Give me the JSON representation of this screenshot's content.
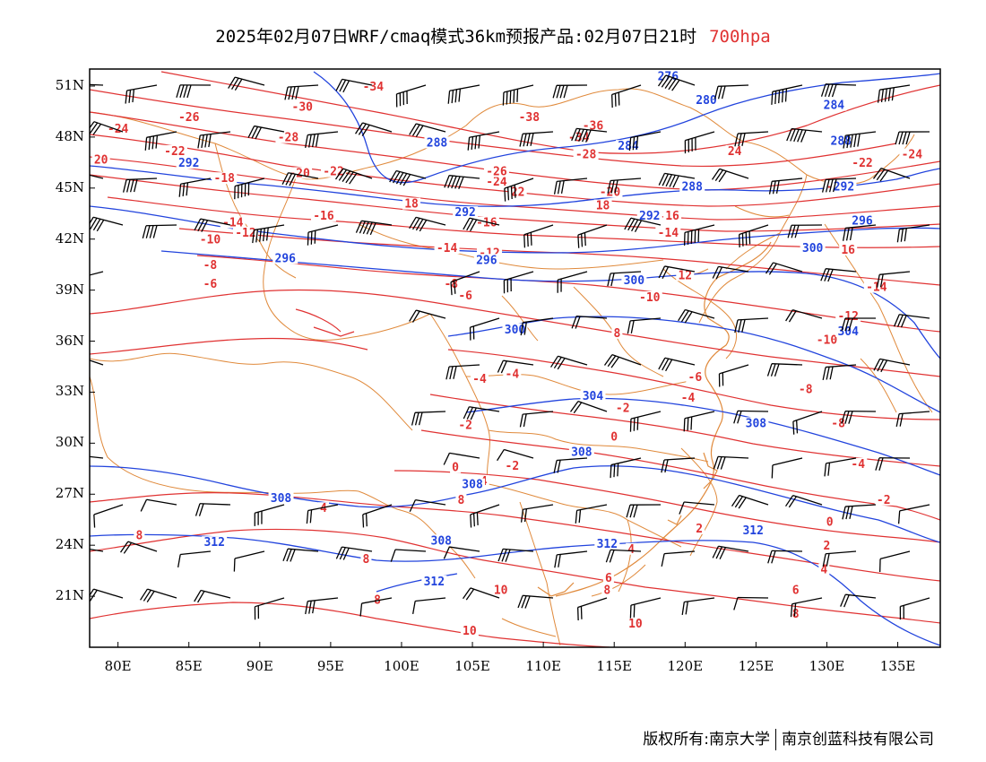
{
  "title": {
    "main": "2025年02月07日WRF/cmaq模式36km预报产品:02月07日21时",
    "level": "700hpa"
  },
  "footer": {
    "copyright": "版权所有:南京大学",
    "company": "南京创蓝科技有限公司"
  },
  "colors": {
    "temperature_contour": "#e03232",
    "height_contour": "#2244dd",
    "boundary": "#e08a3c",
    "wind_barb": "#000000"
  },
  "map_data": {
    "lon_range": [
      78,
      138
    ],
    "lat_range": [
      18,
      52
    ],
    "y_ticks": [
      "51N",
      "48N",
      "45N",
      "42N",
      "39N",
      "36N",
      "33N",
      "30N",
      "27N",
      "24N",
      "21N"
    ],
    "y_tick_values": [
      51,
      48,
      45,
      42,
      39,
      36,
      33,
      30,
      27,
      24,
      21
    ],
    "x_ticks": [
      "80E",
      "85E",
      "90E",
      "95E",
      "100E",
      "105E",
      "110E",
      "115E",
      "120E",
      "125E",
      "130E",
      "135E"
    ],
    "x_tick_values": [
      80,
      85,
      90,
      95,
      100,
      105,
      110,
      115,
      120,
      125,
      130,
      135
    ],
    "temperature_labels": [
      {
        "text": "-34",
        "lon": 98,
        "lat": 50.8
      },
      {
        "text": "-30",
        "lon": 93,
        "lat": 49.6
      },
      {
        "text": "-26",
        "lon": 85,
        "lat": 49.0
      },
      {
        "text": "-24",
        "lon": 80,
        "lat": 48.3
      },
      {
        "text": "-28",
        "lon": 92,
        "lat": 47.8
      },
      {
        "text": "-22",
        "lon": 84,
        "lat": 47.0
      },
      {
        "text": "-38",
        "lon": 109,
        "lat": 49.0
      },
      {
        "text": "-36",
        "lon": 113.5,
        "lat": 48.5
      },
      {
        "text": "-34",
        "lon": 112.5,
        "lat": 47.8
      },
      {
        "text": "-28",
        "lon": 113,
        "lat": 46.8
      },
      {
        "text": "24",
        "lon": 123.5,
        "lat": 47.0
      },
      {
        "text": "-22",
        "lon": 132.5,
        "lat": 46.3
      },
      {
        "text": "-24",
        "lon": 136,
        "lat": 46.8
      },
      {
        "text": "-20",
        "lon": 130.7,
        "lat": 44.9
      },
      {
        "text": "20",
        "lon": 78.8,
        "lat": 46.5
      },
      {
        "text": "-18",
        "lon": 87.5,
        "lat": 45.4
      },
      {
        "text": "-20",
        "lon": 92.8,
        "lat": 45.7
      },
      {
        "text": "-22",
        "lon": 95.2,
        "lat": 45.8
      },
      {
        "text": "-24",
        "lon": 106.7,
        "lat": 45.2
      },
      {
        "text": "-26",
        "lon": 106.7,
        "lat": 45.8
      },
      {
        "text": "22",
        "lon": 108.2,
        "lat": 44.6
      },
      {
        "text": "-20",
        "lon": 114.7,
        "lat": 44.6
      },
      {
        "text": "18",
        "lon": 100.7,
        "lat": 43.9
      },
      {
        "text": "18",
        "lon": 114.2,
        "lat": 43.8
      },
      {
        "text": "-16",
        "lon": 94.5,
        "lat": 43.2
      },
      {
        "text": "-16",
        "lon": 106,
        "lat": 42.8
      },
      {
        "text": "16",
        "lon": 119.1,
        "lat": 43.2
      },
      {
        "text": "-14",
        "lon": 88.1,
        "lat": 42.8
      },
      {
        "text": "-12",
        "lon": 89,
        "lat": 42.2
      },
      {
        "text": "-10",
        "lon": 86.5,
        "lat": 41.8
      },
      {
        "text": "-14",
        "lon": 118.8,
        "lat": 42.2
      },
      {
        "text": "-14",
        "lon": 103.2,
        "lat": 41.3
      },
      {
        "text": "-12",
        "lon": 106.2,
        "lat": 41.0
      },
      {
        "text": "16",
        "lon": 131.5,
        "lat": 41.2
      },
      {
        "text": "-8",
        "lon": 86.5,
        "lat": 40.3
      },
      {
        "text": "-6",
        "lon": 86.5,
        "lat": 39.2
      },
      {
        "text": "-8",
        "lon": 103.5,
        "lat": 39.2
      },
      {
        "text": "-6",
        "lon": 104.5,
        "lat": 38.5
      },
      {
        "text": "12",
        "lon": 120,
        "lat": 39.7
      },
      {
        "text": "-10",
        "lon": 117.5,
        "lat": 38.4
      },
      {
        "text": "-14",
        "lon": 133.5,
        "lat": 39.0
      },
      {
        "text": "-12",
        "lon": 131.5,
        "lat": 37.3
      },
      {
        "text": "-10",
        "lon": 130,
        "lat": 35.9
      },
      {
        "text": "8",
        "lon": 115.2,
        "lat": 36.3
      },
      {
        "text": "-6",
        "lon": 120.7,
        "lat": 33.7
      },
      {
        "text": "-4",
        "lon": 105.5,
        "lat": 33.6
      },
      {
        "text": "-4",
        "lon": 107.8,
        "lat": 33.9
      },
      {
        "text": "-4",
        "lon": 120.2,
        "lat": 32.5
      },
      {
        "text": "-8",
        "lon": 128.5,
        "lat": 33.0
      },
      {
        "text": "-2",
        "lon": 115.6,
        "lat": 31.9
      },
      {
        "text": "-2",
        "lon": 104.5,
        "lat": 30.9
      },
      {
        "text": "-8",
        "lon": 130.8,
        "lat": 31.0
      },
      {
        "text": "0",
        "lon": 115,
        "lat": 30.2
      },
      {
        "text": "-4",
        "lon": 132.2,
        "lat": 28.6
      },
      {
        "text": "-2",
        "lon": 107.8,
        "lat": 28.5
      },
      {
        "text": "0",
        "lon": 103.8,
        "lat": 28.4
      },
      {
        "text": "4",
        "lon": 105.8,
        "lat": 27.6
      },
      {
        "text": "8",
        "lon": 104.2,
        "lat": 26.5
      },
      {
        "text": "-2",
        "lon": 134,
        "lat": 26.5
      },
      {
        "text": "4",
        "lon": 94.5,
        "lat": 26.0
      },
      {
        "text": "0",
        "lon": 130.2,
        "lat": 25.2
      },
      {
        "text": "8",
        "lon": 81.5,
        "lat": 24.4
      },
      {
        "text": "2",
        "lon": 121,
        "lat": 24.8
      },
      {
        "text": "2",
        "lon": 130,
        "lat": 23.8
      },
      {
        "text": "4",
        "lon": 116.2,
        "lat": 23.6
      },
      {
        "text": "8",
        "lon": 97.5,
        "lat": 23.0
      },
      {
        "text": "4",
        "lon": 129.8,
        "lat": 22.4
      },
      {
        "text": "6",
        "lon": 114.6,
        "lat": 21.9
      },
      {
        "text": "6",
        "lon": 127.8,
        "lat": 21.2
      },
      {
        "text": "10",
        "lon": 107,
        "lat": 21.2
      },
      {
        "text": "8",
        "lon": 114.5,
        "lat": 21.2
      },
      {
        "text": "8",
        "lon": 98.3,
        "lat": 20.6
      },
      {
        "text": "8",
        "lon": 127.8,
        "lat": 19.8
      },
      {
        "text": "10",
        "lon": 116.5,
        "lat": 19.2
      },
      {
        "text": "10",
        "lon": 104.8,
        "lat": 18.8
      }
    ],
    "height_labels": [
      {
        "text": "276",
        "lon": 118.8,
        "lat": 51.4
      },
      {
        "text": "280",
        "lon": 121.5,
        "lat": 50.0
      },
      {
        "text": "284",
        "lon": 130.5,
        "lat": 49.7
      },
      {
        "text": "288",
        "lon": 102.5,
        "lat": 47.5
      },
      {
        "text": "284",
        "lon": 116,
        "lat": 47.3
      },
      {
        "text": "288",
        "lon": 131,
        "lat": 47.6
      },
      {
        "text": "292",
        "lon": 85,
        "lat": 46.3
      },
      {
        "text": "288",
        "lon": 120.5,
        "lat": 44.9
      },
      {
        "text": "292",
        "lon": 131.2,
        "lat": 44.9
      },
      {
        "text": "292",
        "lon": 104.5,
        "lat": 43.4
      },
      {
        "text": "292",
        "lon": 117.5,
        "lat": 43.2
      },
      {
        "text": "296",
        "lon": 132.5,
        "lat": 42.9
      },
      {
        "text": "296",
        "lon": 91.8,
        "lat": 40.7
      },
      {
        "text": "296",
        "lon": 106,
        "lat": 40.6
      },
      {
        "text": "300",
        "lon": 116.4,
        "lat": 39.4
      },
      {
        "text": "300",
        "lon": 129,
        "lat": 41.3
      },
      {
        "text": "300",
        "lon": 108,
        "lat": 36.5
      },
      {
        "text": "304",
        "lon": 131.5,
        "lat": 36.4
      },
      {
        "text": "304",
        "lon": 113.5,
        "lat": 32.6
      },
      {
        "text": "308",
        "lon": 125,
        "lat": 31.0
      },
      {
        "text": "308",
        "lon": 112.7,
        "lat": 29.3
      },
      {
        "text": "308",
        "lon": 91.5,
        "lat": 26.6
      },
      {
        "text": "308",
        "lon": 105,
        "lat": 27.4
      },
      {
        "text": "312",
        "lon": 86.8,
        "lat": 24.0
      },
      {
        "text": "308",
        "lon": 102.8,
        "lat": 24.1
      },
      {
        "text": "312",
        "lon": 114.5,
        "lat": 23.9
      },
      {
        "text": "312",
        "lon": 124.8,
        "lat": 24.7
      },
      {
        "text": "312",
        "lon": 102.3,
        "lat": 21.7
      }
    ]
  }
}
